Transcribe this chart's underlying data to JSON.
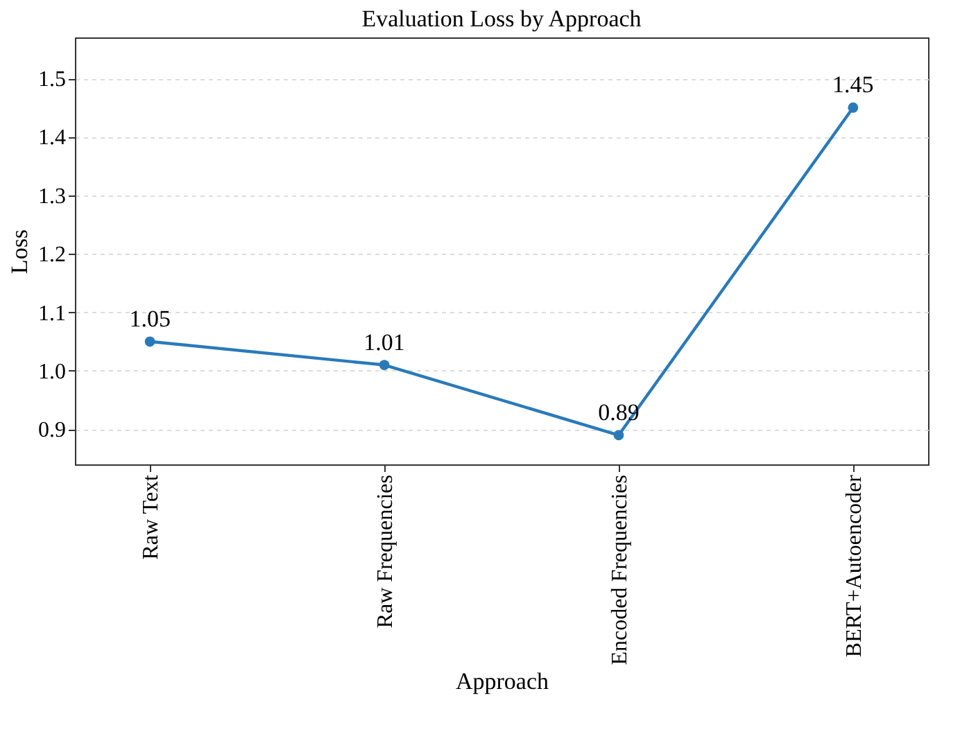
{
  "chart_data": {
    "type": "line",
    "title": "Evaluation Loss by Approach",
    "xlabel": "Approach",
    "ylabel": "Loss",
    "categories": [
      "Raw Text",
      "Raw Frequencies",
      "Encoded Frequencies",
      "BERT+Autoencoder"
    ],
    "series": [
      {
        "color": "#2a7ab9",
        "values": [
          1.05,
          1.01,
          0.89,
          1.45
        ]
      }
    ],
    "ylim": [
      0.84,
      1.57
    ],
    "yticks": [
      0.9,
      {
        "value": 1.0,
        "label": "1.0"
      },
      1.1,
      1.2,
      1.3,
      1.4,
      1.5
    ],
    "grid": "y",
    "marker": "circle",
    "line_style": "solid",
    "data_labels": true
  }
}
